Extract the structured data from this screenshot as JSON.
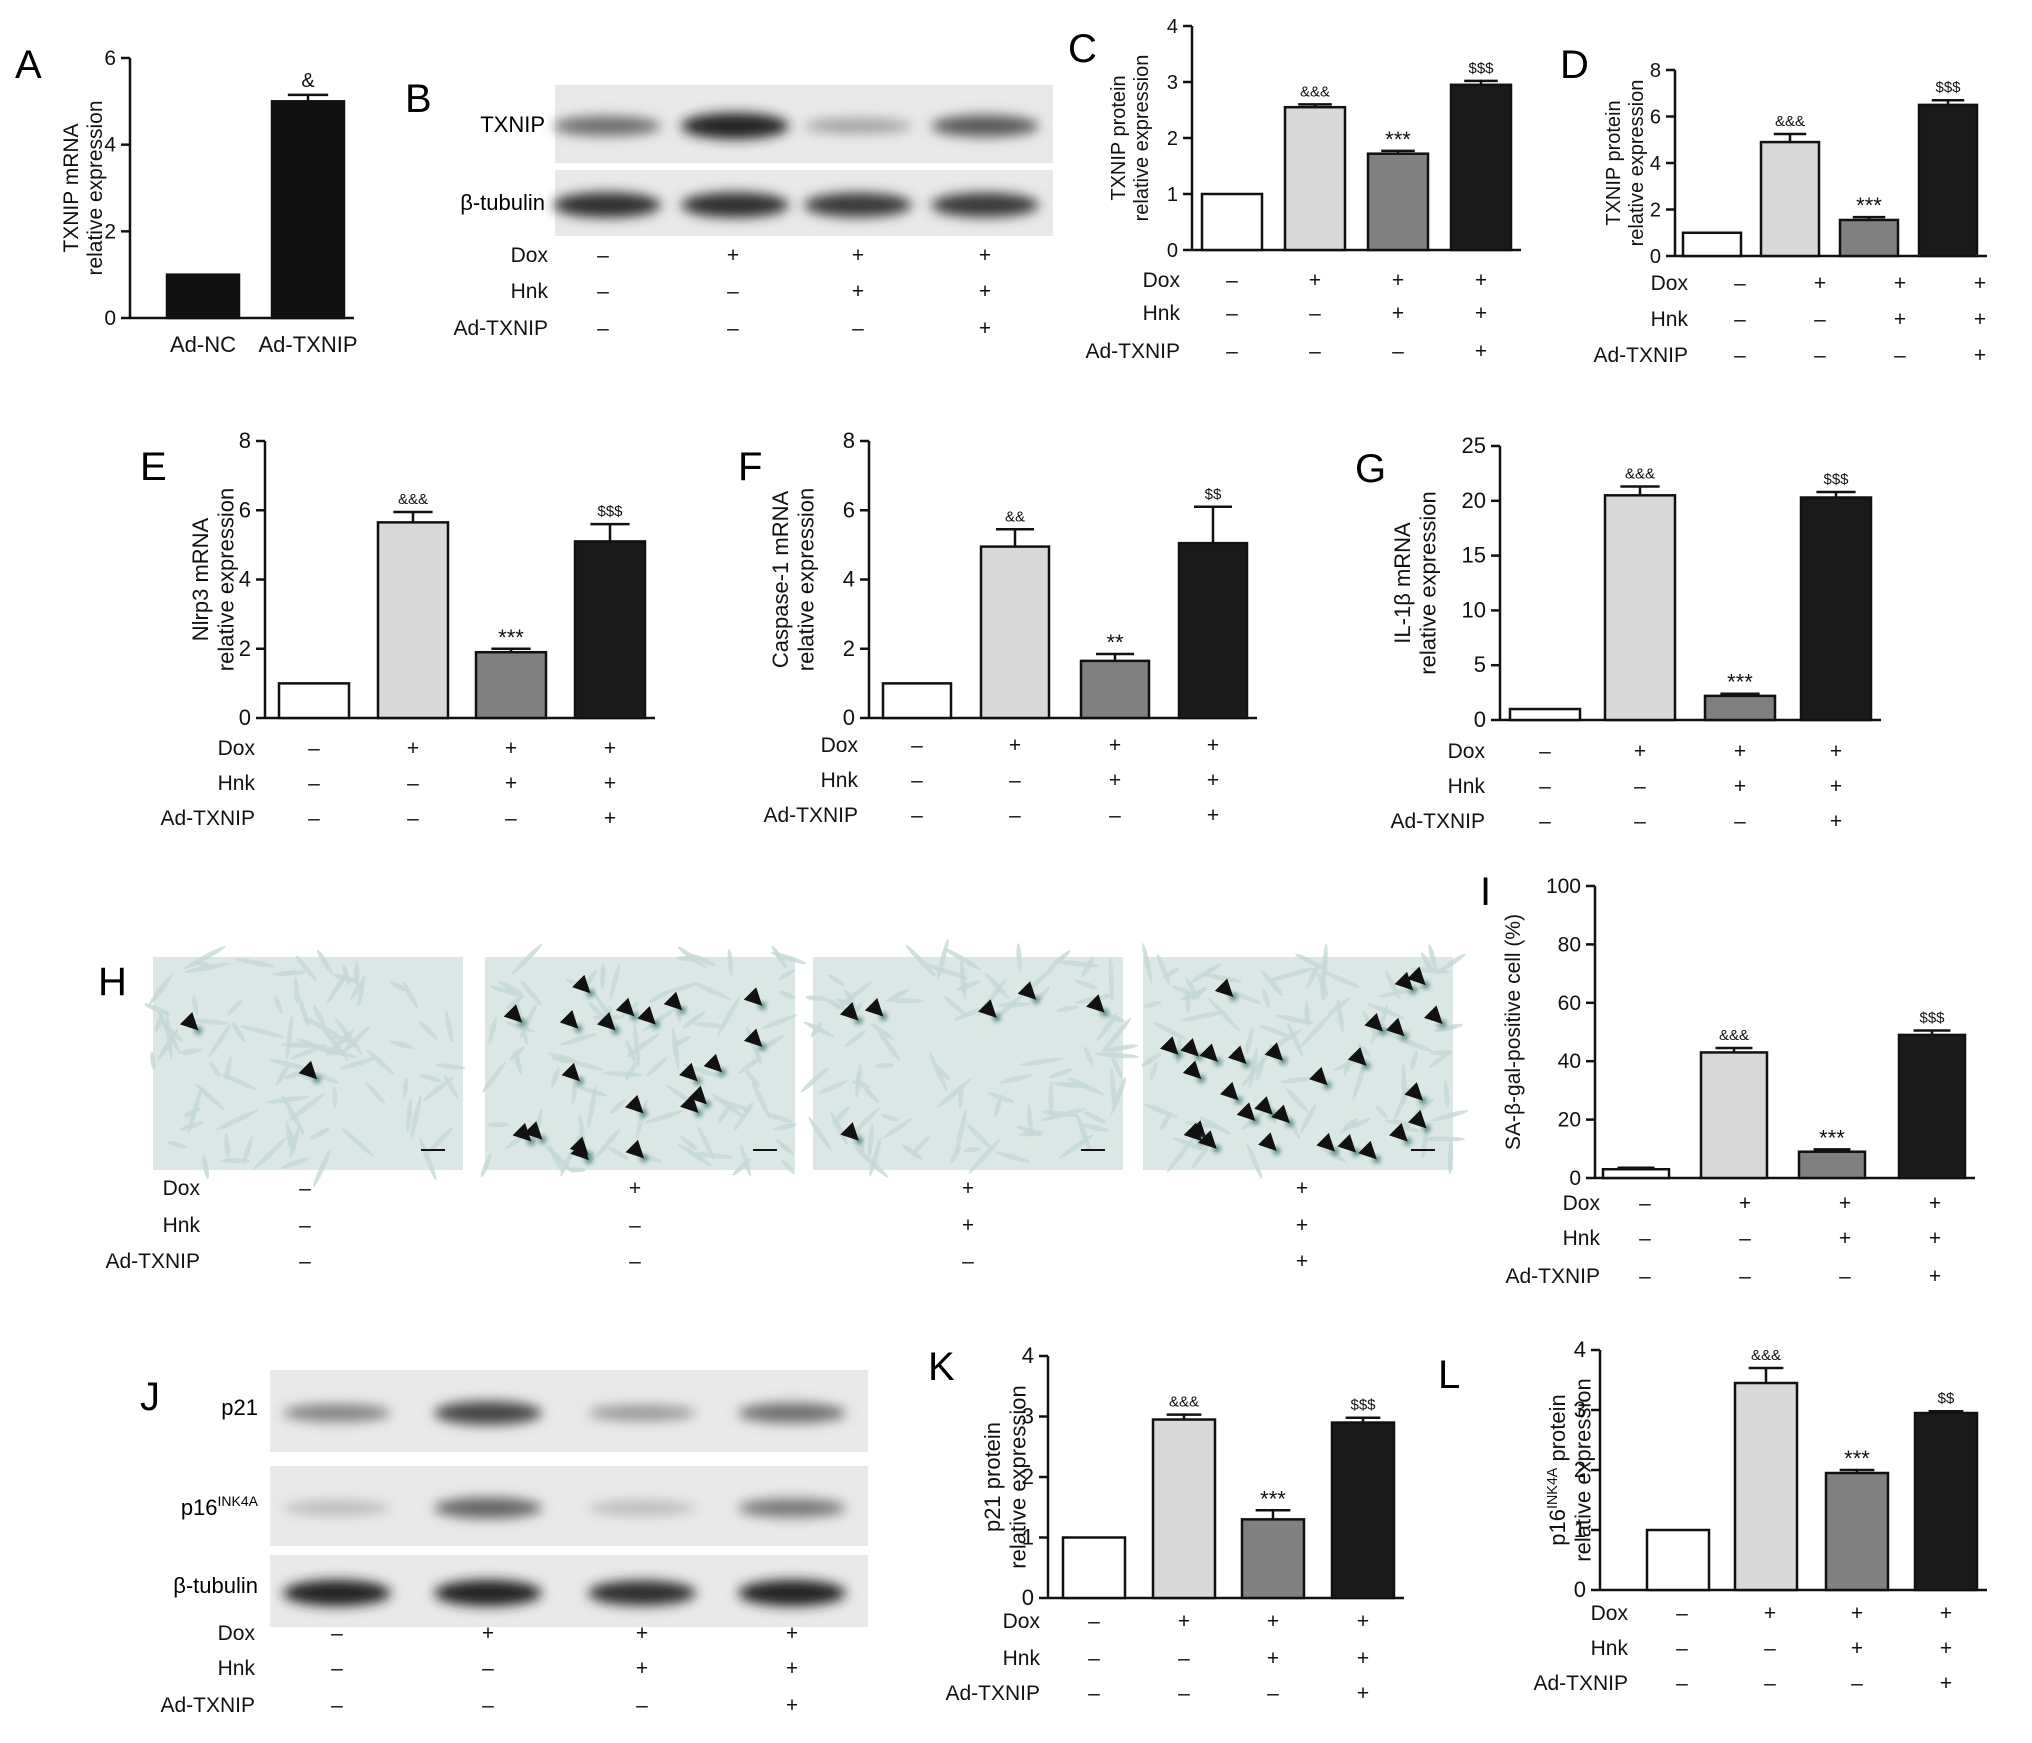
{
  "colors": {
    "ctrl": "#ffffff",
    "dox": "#d9d9d9",
    "hnk": "#808080",
    "txnip": "#1a1a1a",
    "black": "#111111",
    "micrograph_bg": "#dbe7e4",
    "cell_dark": "#5f8e86",
    "band_bg": "#e9e9e9"
  },
  "row_labels": {
    "dox": "Dox",
    "hnk": "Hnk",
    "ad": "Ad-TXNIP"
  },
  "treatments": {
    "dox": [
      "–",
      "+",
      "+",
      "+"
    ],
    "hnk": [
      "–",
      "–",
      "+",
      "+"
    ],
    "ad": [
      "–",
      "–",
      "–",
      "+"
    ]
  },
  "panel_letters": {
    "A": "A",
    "B": "B",
    "C": "C",
    "D": "D",
    "E": "E",
    "F": "F",
    "G": "G",
    "H": "H",
    "I": "I",
    "J": "J",
    "K": "K",
    "L": "L"
  },
  "blots": {
    "B": {
      "labels": [
        "TXNIP",
        "β-tubulin"
      ],
      "intensity": [
        [
          0.55,
          0.9,
          0.3,
          0.65
        ],
        [
          0.85,
          0.85,
          0.8,
          0.8
        ]
      ]
    },
    "J": {
      "labels": [
        "p21",
        "p16INK4A",
        "β-tubulin"
      ],
      "intensity": [
        [
          0.45,
          0.75,
          0.35,
          0.55
        ],
        [
          0.2,
          0.6,
          0.2,
          0.5
        ],
        [
          0.9,
          0.9,
          0.85,
          0.9
        ]
      ]
    }
  },
  "label_parts": {
    "p16_base": "p16",
    "p16_sup": "INK4A"
  },
  "micrographs": {
    "arrow_counts": [
      2,
      20,
      6,
      28
    ]
  },
  "chart_data": [
    {
      "id": "A",
      "type": "bar",
      "categories": [
        "Ad-NC",
        "Ad-TXNIP"
      ],
      "values": [
        1,
        5.0
      ],
      "errors": [
        0,
        0.15
      ],
      "annotations": [
        "",
        "&"
      ],
      "ylabel_lines": [
        "TXNIP mRNA",
        "relative expression"
      ],
      "ylim": [
        0,
        6
      ],
      "yticks": [
        0,
        2,
        4,
        6
      ],
      "colors": [
        "black",
        "black"
      ]
    },
    {
      "id": "C",
      "type": "bar",
      "values": [
        1,
        2.55,
        1.72,
        2.95
      ],
      "errors": [
        0,
        0.05,
        0.05,
        0.07
      ],
      "annotations": [
        "",
        "&&&",
        "***",
        "$$$"
      ],
      "ylabel_lines": [
        "TXNIP protein",
        "relative expression"
      ],
      "ylim": [
        0,
        4
      ],
      "yticks": [
        0,
        1,
        2,
        3,
        4
      ]
    },
    {
      "id": "D",
      "type": "bar",
      "values": [
        1,
        4.9,
        1.55,
        6.5
      ],
      "errors": [
        0,
        0.35,
        0.12,
        0.2
      ],
      "annotations": [
        "",
        "&&&",
        "***",
        "$$$"
      ],
      "ylabel_lines": [
        "TXNIP protein",
        "relative expression"
      ],
      "ylim": [
        0,
        8
      ],
      "yticks": [
        0,
        2,
        4,
        6,
        8
      ]
    },
    {
      "id": "E",
      "type": "bar",
      "values": [
        1,
        5.65,
        1.9,
        5.1
      ],
      "errors": [
        0,
        0.3,
        0.1,
        0.5
      ],
      "annotations": [
        "",
        "&&&",
        "***",
        "$$$"
      ],
      "ylabel_lines": [
        "Nlrp3 mRNA",
        "relative expression"
      ],
      "ylim": [
        0,
        8
      ],
      "yticks": [
        0,
        2,
        4,
        6,
        8
      ]
    },
    {
      "id": "F",
      "type": "bar",
      "values": [
        1,
        4.95,
        1.65,
        5.05
      ],
      "errors": [
        0,
        0.5,
        0.2,
        1.05
      ],
      "annotations": [
        "",
        "&&",
        "**",
        "$$"
      ],
      "ylabel_lines": [
        "Caspase-1 mRNA",
        "relative expression"
      ],
      "ylim": [
        0,
        8
      ],
      "yticks": [
        0,
        2,
        4,
        6,
        8
      ]
    },
    {
      "id": "G",
      "type": "bar",
      "values": [
        1,
        20.5,
        2.2,
        20.3
      ],
      "errors": [
        0,
        0.8,
        0.2,
        0.5
      ],
      "annotations": [
        "",
        "&&&",
        "***",
        "$$$"
      ],
      "ylabel_lines": [
        "IL-1β mRNA",
        "relative expression"
      ],
      "ylim": [
        0,
        25
      ],
      "yticks": [
        0,
        5,
        10,
        15,
        20,
        25
      ]
    },
    {
      "id": "I",
      "type": "bar",
      "values": [
        3,
        43,
        9,
        49
      ],
      "errors": [
        0.5,
        1.5,
        0.8,
        1.5
      ],
      "annotations": [
        "",
        "&&&",
        "***",
        "$$$"
      ],
      "ylabel_lines": [
        "SA-β-gal-positive cell (%)"
      ],
      "ylim": [
        0,
        100
      ],
      "yticks": [
        0,
        20,
        40,
        60,
        80,
        100
      ]
    },
    {
      "id": "K",
      "type": "bar",
      "values": [
        1,
        2.95,
        1.3,
        2.9
      ],
      "errors": [
        0,
        0.08,
        0.15,
        0.08
      ],
      "annotations": [
        "",
        "&&&",
        "***",
        "$$$"
      ],
      "ylabel_lines": [
        "p21 protein",
        "relative expression"
      ],
      "ylim": [
        0,
        4
      ],
      "yticks": [
        0,
        1,
        2,
        3,
        4
      ]
    },
    {
      "id": "L",
      "type": "bar",
      "values": [
        1,
        3.45,
        1.95,
        2.95
      ],
      "errors": [
        0,
        0.25,
        0.05,
        0.03
      ],
      "annotations": [
        "",
        "&&&",
        "***",
        "$$"
      ],
      "ylabel_lines": [
        "p16INK4A protein",
        "relative expression"
      ],
      "ylim": [
        0,
        4
      ],
      "yticks": [
        0,
        1,
        2,
        3,
        4
      ]
    }
  ]
}
